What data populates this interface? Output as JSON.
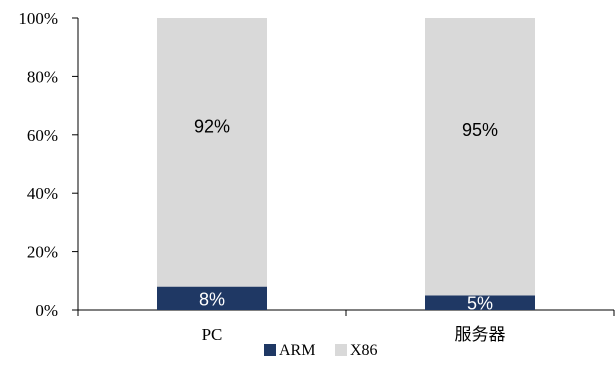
{
  "chart_data": {
    "type": "bar",
    "stacked": true,
    "percent": true,
    "categories": [
      "PC",
      "服务器"
    ],
    "series": [
      {
        "name": "ARM",
        "values": [
          8,
          5
        ],
        "labels": [
          "8%",
          "5%"
        ],
        "color": "#1f3864",
        "label_color": "#ffffff"
      },
      {
        "name": "X86",
        "values": [
          92,
          95
        ],
        "labels": [
          "92%",
          "95%"
        ],
        "color": "#d9d9d9",
        "label_color": "#000000"
      }
    ],
    "ylim": [
      0,
      100
    ],
    "yticks": [
      "0%",
      "20%",
      "40%",
      "60%",
      "80%",
      "100%"
    ],
    "grid": false,
    "legend_position": "bottom",
    "title": "",
    "xlabel": "",
    "ylabel": ""
  }
}
